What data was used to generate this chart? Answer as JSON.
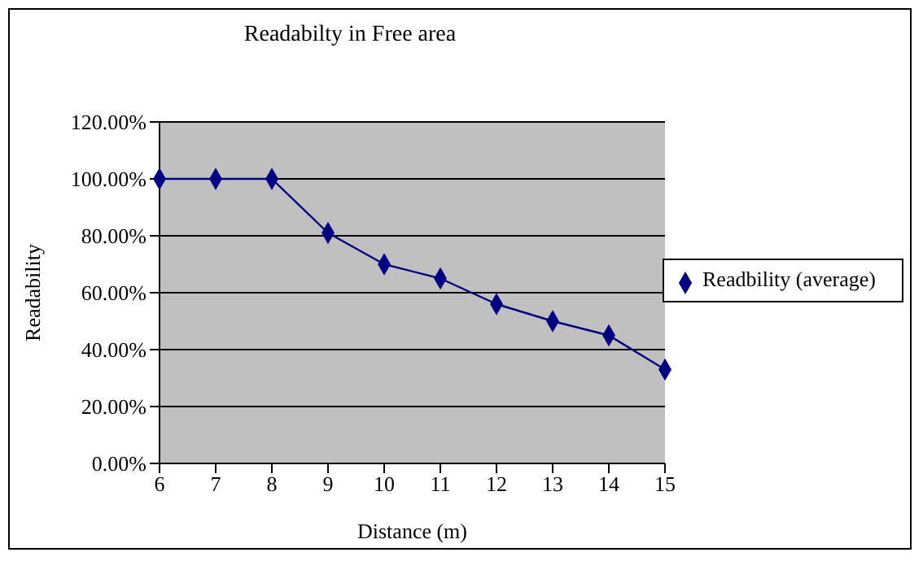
{
  "chart_data": {
    "type": "line",
    "title": "Readabilty in Free area",
    "xlabel": "Distance (m)",
    "ylabel": "Readability",
    "categories": [
      "6",
      "7",
      "8",
      "9",
      "10",
      "11",
      "12",
      "13",
      "14",
      "15"
    ],
    "series": [
      {
        "name": "Readbility (average)",
        "color": "#000080",
        "values": [
          100,
          100,
          100,
          81,
          70,
          65,
          56,
          50,
          45,
          33
        ]
      }
    ],
    "ylim": [
      0,
      120
    ],
    "yticks": [
      {
        "value": 0,
        "label": "0.00%"
      },
      {
        "value": 20,
        "label": "20.00%"
      },
      {
        "value": 40,
        "label": "40.00%"
      },
      {
        "value": 60,
        "label": "60.00%"
      },
      {
        "value": 80,
        "label": "80.00%"
      },
      {
        "value": 100,
        "label": "100.00%"
      },
      {
        "value": 120,
        "label": "120.00%"
      }
    ],
    "grid": "y",
    "legend": "right",
    "marker": "diamond",
    "line_style": "solid"
  }
}
